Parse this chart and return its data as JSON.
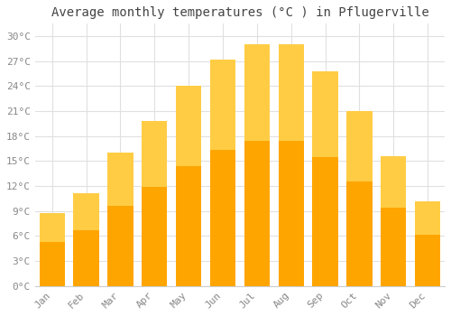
{
  "months": [
    "Jan",
    "Feb",
    "Mar",
    "Apr",
    "May",
    "Jun",
    "Jul",
    "Aug",
    "Sep",
    "Oct",
    "Nov",
    "Dec"
  ],
  "values": [
    8.8,
    11.2,
    16.0,
    19.8,
    24.0,
    27.2,
    29.0,
    29.0,
    25.8,
    21.0,
    15.6,
    10.2
  ],
  "bar_color": "#FFA500",
  "bar_edge_color": "#FFA500",
  "title": "Average monthly temperatures (°C ) in Pflugerville",
  "title_fontsize": 10,
  "ylim": [
    0,
    31.5
  ],
  "yticks": [
    0,
    3,
    6,
    9,
    12,
    15,
    18,
    21,
    24,
    27,
    30
  ],
  "ytick_labels": [
    "0°C",
    "3°C",
    "6°C",
    "9°C",
    "12°C",
    "15°C",
    "18°C",
    "21°C",
    "24°C",
    "27°C",
    "30°C"
  ],
  "background_color": "#ffffff",
  "grid_color": "#e0e0e0",
  "tick_label_color": "#888888",
  "title_color": "#444444",
  "font_family": "monospace",
  "bar_width": 0.75
}
